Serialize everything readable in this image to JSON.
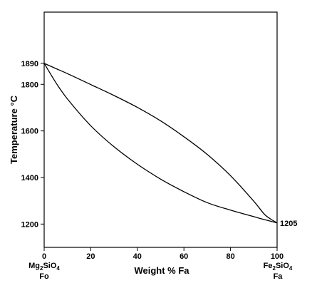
{
  "chart_data": {
    "type": "line",
    "xlabel": "Weight % Fa",
    "ylabel": "Temperature °C",
    "xlim": [
      0,
      100
    ],
    "ylim": [
      1100,
      2110
    ],
    "x_ticks": [
      0,
      20,
      40,
      60,
      80,
      100
    ],
    "y_ticks": [
      1200,
      1400,
      1600,
      1800,
      1890
    ],
    "series": [
      {
        "x": [
          0,
          5,
          10,
          20,
          30,
          40,
          50,
          60,
          70,
          80,
          90,
          95,
          100
        ],
        "y": [
          1890,
          1868,
          1846,
          1799,
          1752,
          1701,
          1643,
          1575,
          1499,
          1408,
          1298,
          1238,
          1205
        ]
      },
      {
        "x": [
          0,
          5,
          10,
          20,
          30,
          40,
          50,
          60,
          70,
          80,
          90,
          95,
          100
        ],
        "y": [
          1890,
          1808,
          1737,
          1622,
          1532,
          1457,
          1393,
          1339,
          1292,
          1260,
          1232,
          1218,
          1205
        ]
      }
    ],
    "end_labels": {
      "left": {
        "formula_parts": [
          "Mg",
          "2",
          "SiO",
          "4"
        ],
        "name": "Fo"
      },
      "right": {
        "formula_parts": [
          "Fe",
          "2",
          "SiO",
          "4"
        ],
        "name": "Fa"
      },
      "right_temperature": "1205"
    }
  }
}
